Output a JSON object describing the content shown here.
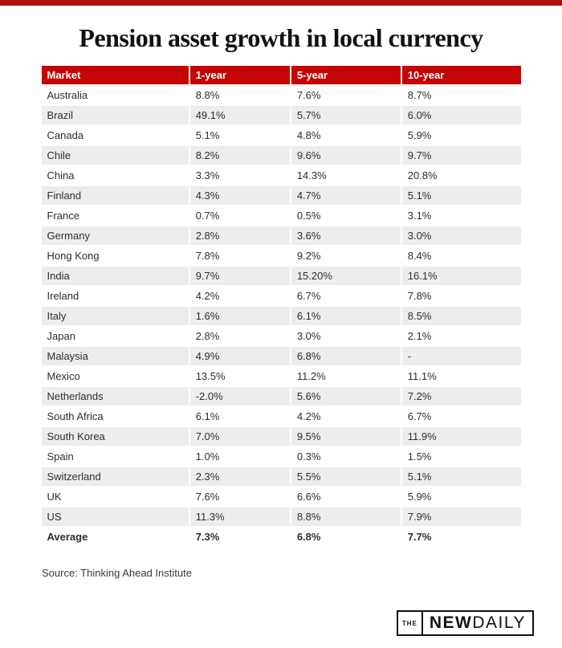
{
  "page": {
    "title": "Pension asset growth in local currency",
    "source": "Source: Thinking Ahead Institute",
    "colors": {
      "top_bar": "#b30d0d",
      "table_header_bg": "#c50505",
      "row_stripe": "#ededed",
      "text": "#2d2d2d"
    }
  },
  "table": {
    "columns": [
      "Market",
      "1-year",
      "5-year",
      "10-year"
    ],
    "rows": [
      {
        "cells": [
          "Australia",
          "8.8%",
          "7.6%",
          "8.7%"
        ],
        "bold": false
      },
      {
        "cells": [
          "Brazil",
          "49.1%",
          "5.7%",
          "6.0%"
        ],
        "bold": false
      },
      {
        "cells": [
          "Canada",
          "5.1%",
          "4.8%",
          "5.9%"
        ],
        "bold": false
      },
      {
        "cells": [
          "Chile",
          "8.2%",
          "9.6%",
          "9.7%"
        ],
        "bold": false
      },
      {
        "cells": [
          "China",
          "3.3%",
          "14.3%",
          "20.8%"
        ],
        "bold": false
      },
      {
        "cells": [
          "Finland",
          "4.3%",
          "4.7%",
          "5.1%"
        ],
        "bold": false
      },
      {
        "cells": [
          "France",
          "0.7%",
          "0.5%",
          "3.1%"
        ],
        "bold": false
      },
      {
        "cells": [
          "Germany",
          "2.8%",
          "3.6%",
          "3.0%"
        ],
        "bold": false
      },
      {
        "cells": [
          "Hong Kong",
          "7.8%",
          "9.2%",
          "8.4%"
        ],
        "bold": false
      },
      {
        "cells": [
          "India",
          "9.7%",
          "15.20%",
          "16.1%"
        ],
        "bold": false
      },
      {
        "cells": [
          "Ireland",
          "4.2%",
          "6.7%",
          "7.8%"
        ],
        "bold": false
      },
      {
        "cells": [
          "Italy",
          "1.6%",
          "6.1%",
          "8.5%"
        ],
        "bold": false
      },
      {
        "cells": [
          "Japan",
          "2.8%",
          "3.0%",
          "2.1%"
        ],
        "bold": false
      },
      {
        "cells": [
          "Malaysia",
          "4.9%",
          "6.8%",
          "-"
        ],
        "bold": false
      },
      {
        "cells": [
          "Mexico",
          "13.5%",
          "11.2%",
          "11.1%"
        ],
        "bold": false
      },
      {
        "cells": [
          "Netherlands",
          "-2.0%",
          "5.6%",
          "7.2%"
        ],
        "bold": false
      },
      {
        "cells": [
          "South Africa",
          "6.1%",
          "4.2%",
          "6.7%"
        ],
        "bold": false
      },
      {
        "cells": [
          "South Korea",
          "7.0%",
          "9.5%",
          "11.9%"
        ],
        "bold": false
      },
      {
        "cells": [
          "Spain",
          "1.0%",
          "0.3%",
          "1.5%"
        ],
        "bold": false
      },
      {
        "cells": [
          "Switzerland",
          "2.3%",
          "5.5%",
          "5.1%"
        ],
        "bold": false
      },
      {
        "cells": [
          "UK",
          "7.6%",
          "6.6%",
          "5.9%"
        ],
        "bold": false
      },
      {
        "cells": [
          "US",
          "11.3%",
          "8.8%",
          "7.9%"
        ],
        "bold": false
      },
      {
        "cells": [
          "Average",
          "7.3%",
          "6.8%",
          "7.7%"
        ],
        "bold": true
      }
    ]
  },
  "chart_data": {
    "type": "table",
    "title": "Pension asset growth in local currency",
    "columns": [
      "Market",
      "1-year",
      "5-year",
      "10-year"
    ],
    "categories": [
      "Australia",
      "Brazil",
      "Canada",
      "Chile",
      "China",
      "Finland",
      "France",
      "Germany",
      "Hong Kong",
      "India",
      "Ireland",
      "Italy",
      "Japan",
      "Malaysia",
      "Mexico",
      "Netherlands",
      "South Africa",
      "South Korea",
      "Spain",
      "Switzerland",
      "UK",
      "US",
      "Average"
    ],
    "series": [
      {
        "name": "1-year",
        "values": [
          8.8,
          49.1,
          5.1,
          8.2,
          3.3,
          4.3,
          0.7,
          2.8,
          7.8,
          9.7,
          4.2,
          1.6,
          2.8,
          4.9,
          13.5,
          -2.0,
          6.1,
          7.0,
          1.0,
          2.3,
          7.6,
          11.3,
          7.3
        ]
      },
      {
        "name": "5-year",
        "values": [
          7.6,
          5.7,
          4.8,
          9.6,
          14.3,
          4.7,
          0.5,
          3.6,
          9.2,
          15.2,
          6.7,
          6.1,
          3.0,
          6.8,
          11.2,
          5.6,
          4.2,
          9.5,
          0.3,
          5.5,
          6.6,
          8.8,
          6.8
        ]
      },
      {
        "name": "10-year",
        "values": [
          8.7,
          6.0,
          5.9,
          9.7,
          20.8,
          5.1,
          3.1,
          3.0,
          8.4,
          16.1,
          7.8,
          8.5,
          2.1,
          null,
          11.1,
          7.2,
          6.7,
          11.9,
          1.5,
          5.1,
          5.9,
          7.9,
          7.7
        ]
      }
    ],
    "units": "%",
    "source": "Source: Thinking Ahead Institute"
  },
  "logo": {
    "the": "THE",
    "new": "NEW",
    "daily": "DAILY"
  }
}
